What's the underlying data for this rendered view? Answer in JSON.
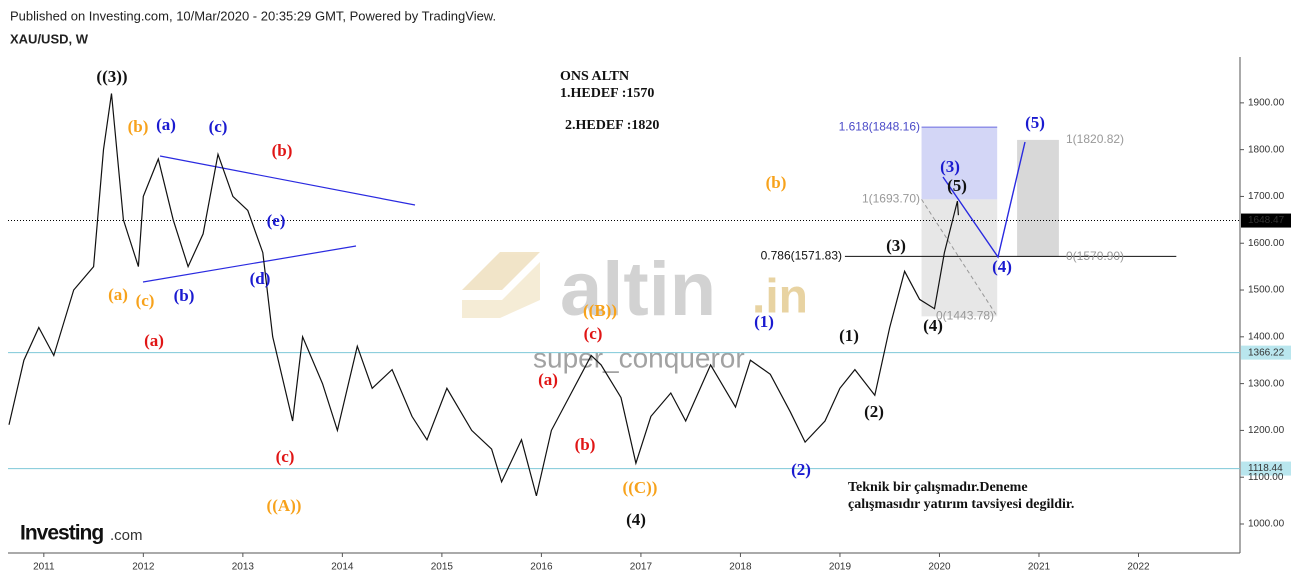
{
  "header": {
    "published": "Published on Investing.com, 10/Mar/2020 - 20:35:29 GMT, Powered by TradingView.",
    "symbol": "XAU/USD, W"
  },
  "chart_data": {
    "type": "line",
    "xlim": [
      2010.64,
      2023.02
    ],
    "ylim": [
      938,
      1998
    ],
    "xticks": [
      2011,
      2012,
      2013,
      2014,
      2015,
      2016,
      2017,
      2018,
      2019,
      2020,
      2021,
      2022
    ],
    "yticks": [
      {
        "value": 1000,
        "label": "1000.00"
      },
      {
        "value": 1100,
        "label": "1100.00"
      },
      {
        "value": 1200,
        "label": "1200.00"
      },
      {
        "value": 1300,
        "label": "1300.00"
      },
      {
        "value": 1400,
        "label": "1400.00"
      },
      {
        "value": 1500,
        "label": "1500.00"
      },
      {
        "value": 1600,
        "label": "1600.00"
      },
      {
        "value": 1700,
        "label": "1700.00"
      },
      {
        "value": 1800,
        "label": "1800.00"
      },
      {
        "value": 1900,
        "label": "1900.00"
      }
    ],
    "grid": false,
    "series": [
      {
        "name": "XAU/USD",
        "color": "#111111",
        "x": [
          2010.65,
          2010.8,
          2010.95,
          2011.1,
          2011.3,
          2011.5,
          2011.6,
          2011.68,
          2011.8,
          2011.95,
          2012.0,
          2012.15,
          2012.3,
          2012.45,
          2012.6,
          2012.75,
          2012.9,
          2013.05,
          2013.2,
          2013.3,
          2013.5,
          2013.6,
          2013.8,
          2013.95,
          2014.15,
          2014.3,
          2014.5,
          2014.7,
          2014.85,
          2015.05,
          2015.3,
          2015.5,
          2015.6,
          2015.8,
          2015.95,
          2016.1,
          2016.3,
          2016.5,
          2016.6,
          2016.8,
          2016.95,
          2017.1,
          2017.3,
          2017.45,
          2017.7,
          2017.95,
          2018.1,
          2018.3,
          2018.5,
          2018.65,
          2018.85,
          2019.0,
          2019.15,
          2019.35,
          2019.5,
          2019.65,
          2019.8,
          2019.95,
          2020.05,
          2020.18,
          2020.19
        ],
        "values": [
          1212,
          1350,
          1420,
          1360,
          1500,
          1550,
          1800,
          1920,
          1650,
          1550,
          1700,
          1780,
          1650,
          1550,
          1620,
          1790,
          1700,
          1670,
          1580,
          1400,
          1220,
          1400,
          1300,
          1200,
          1380,
          1290,
          1330,
          1230,
          1180,
          1290,
          1200,
          1160,
          1090,
          1180,
          1060,
          1200,
          1280,
          1360,
          1340,
          1270,
          1130,
          1230,
          1280,
          1220,
          1340,
          1250,
          1350,
          1320,
          1240,
          1175,
          1220,
          1290,
          1330,
          1275,
          1420,
          1540,
          1480,
          1460,
          1580,
          1690,
          1660
        ]
      }
    ],
    "hlines": [
      {
        "value": 1648.47,
        "color": "#000000",
        "style": "dotted"
      },
      {
        "value": 1366.22,
        "color": "#7ec8d8",
        "style": "solid"
      },
      {
        "value": 1118.44,
        "color": "#7ec8d8",
        "style": "solid"
      }
    ],
    "fib_levels": [
      {
        "value": 1848.16,
        "label": "1.618(1848.16)",
        "color": "#4a4ac8"
      },
      {
        "value": 1693.7,
        "label": "1(1693.70)",
        "color": "#999999"
      },
      {
        "value": 1571.83,
        "label": "0.786(1571.83)",
        "color": "#111111"
      },
      {
        "value": 1443.78,
        "label": "0(1443.78)",
        "color": "#999999"
      },
      {
        "value": 1820.82,
        "label": "1(1820.82)",
        "color": "#999999"
      },
      {
        "value": 1570.9,
        "label": "0(1570.90)",
        "color": "#999999"
      }
    ],
    "targets": [
      "ONS ALTN",
      "1.HEDEF   :1570",
      "2.HEDEF   :1820"
    ],
    "note": [
      "Teknik bir çalışmadır.Deneme",
      "çalışmasıdır yatırım tavsiyesi degildir."
    ],
    "watermarks": [
      "altin",
      ".in",
      "super_conqueror",
      "Investing",
      ".com"
    ],
    "annotations": [
      {
        "text": "((3))",
        "color": "#111111"
      },
      {
        "text": "(b)",
        "color": "#f7a21b"
      },
      {
        "text": "(a)",
        "color": "#1a1ad0"
      },
      {
        "text": "(c)",
        "color": "#1a1ad0"
      },
      {
        "text": "(b)",
        "color": "#e01515"
      },
      {
        "text": "(e)",
        "color": "#1a1ad0"
      },
      {
        "text": "(d)",
        "color": "#1a1ad0"
      },
      {
        "text": "(a)",
        "color": "#f7a21b"
      },
      {
        "text": "(c)",
        "color": "#f7a21b"
      },
      {
        "text": "(b)",
        "color": "#1a1ad0"
      },
      {
        "text": "(a)",
        "color": "#e01515"
      },
      {
        "text": "(c)",
        "color": "#e01515"
      },
      {
        "text": "((A))",
        "color": "#f7a21b"
      },
      {
        "text": "((B))",
        "color": "#f7a21b"
      },
      {
        "text": "(c)",
        "color": "#e01515"
      },
      {
        "text": "(a)",
        "color": "#e01515"
      },
      {
        "text": "(b)",
        "color": "#e01515"
      },
      {
        "text": "((C))",
        "color": "#f7a21b"
      },
      {
        "text": "(4)",
        "color": "#111111"
      },
      {
        "text": "(1)",
        "color": "#1a1ad0"
      },
      {
        "text": "(2)",
        "color": "#1a1ad0"
      },
      {
        "text": "(1)",
        "color": "#111111"
      },
      {
        "text": "(2)",
        "color": "#111111"
      },
      {
        "text": "(3)",
        "color": "#111111"
      },
      {
        "text": "(4)",
        "color": "#111111"
      },
      {
        "text": "(5)",
        "color": "#111111"
      },
      {
        "text": "(3)",
        "color": "#1a1ad0"
      },
      {
        "text": "(4)",
        "color": "#1a1ad0"
      },
      {
        "text": "(5)",
        "color": "#1a1ad0"
      },
      {
        "text": "(b)",
        "color": "#f7a21b"
      }
    ]
  }
}
